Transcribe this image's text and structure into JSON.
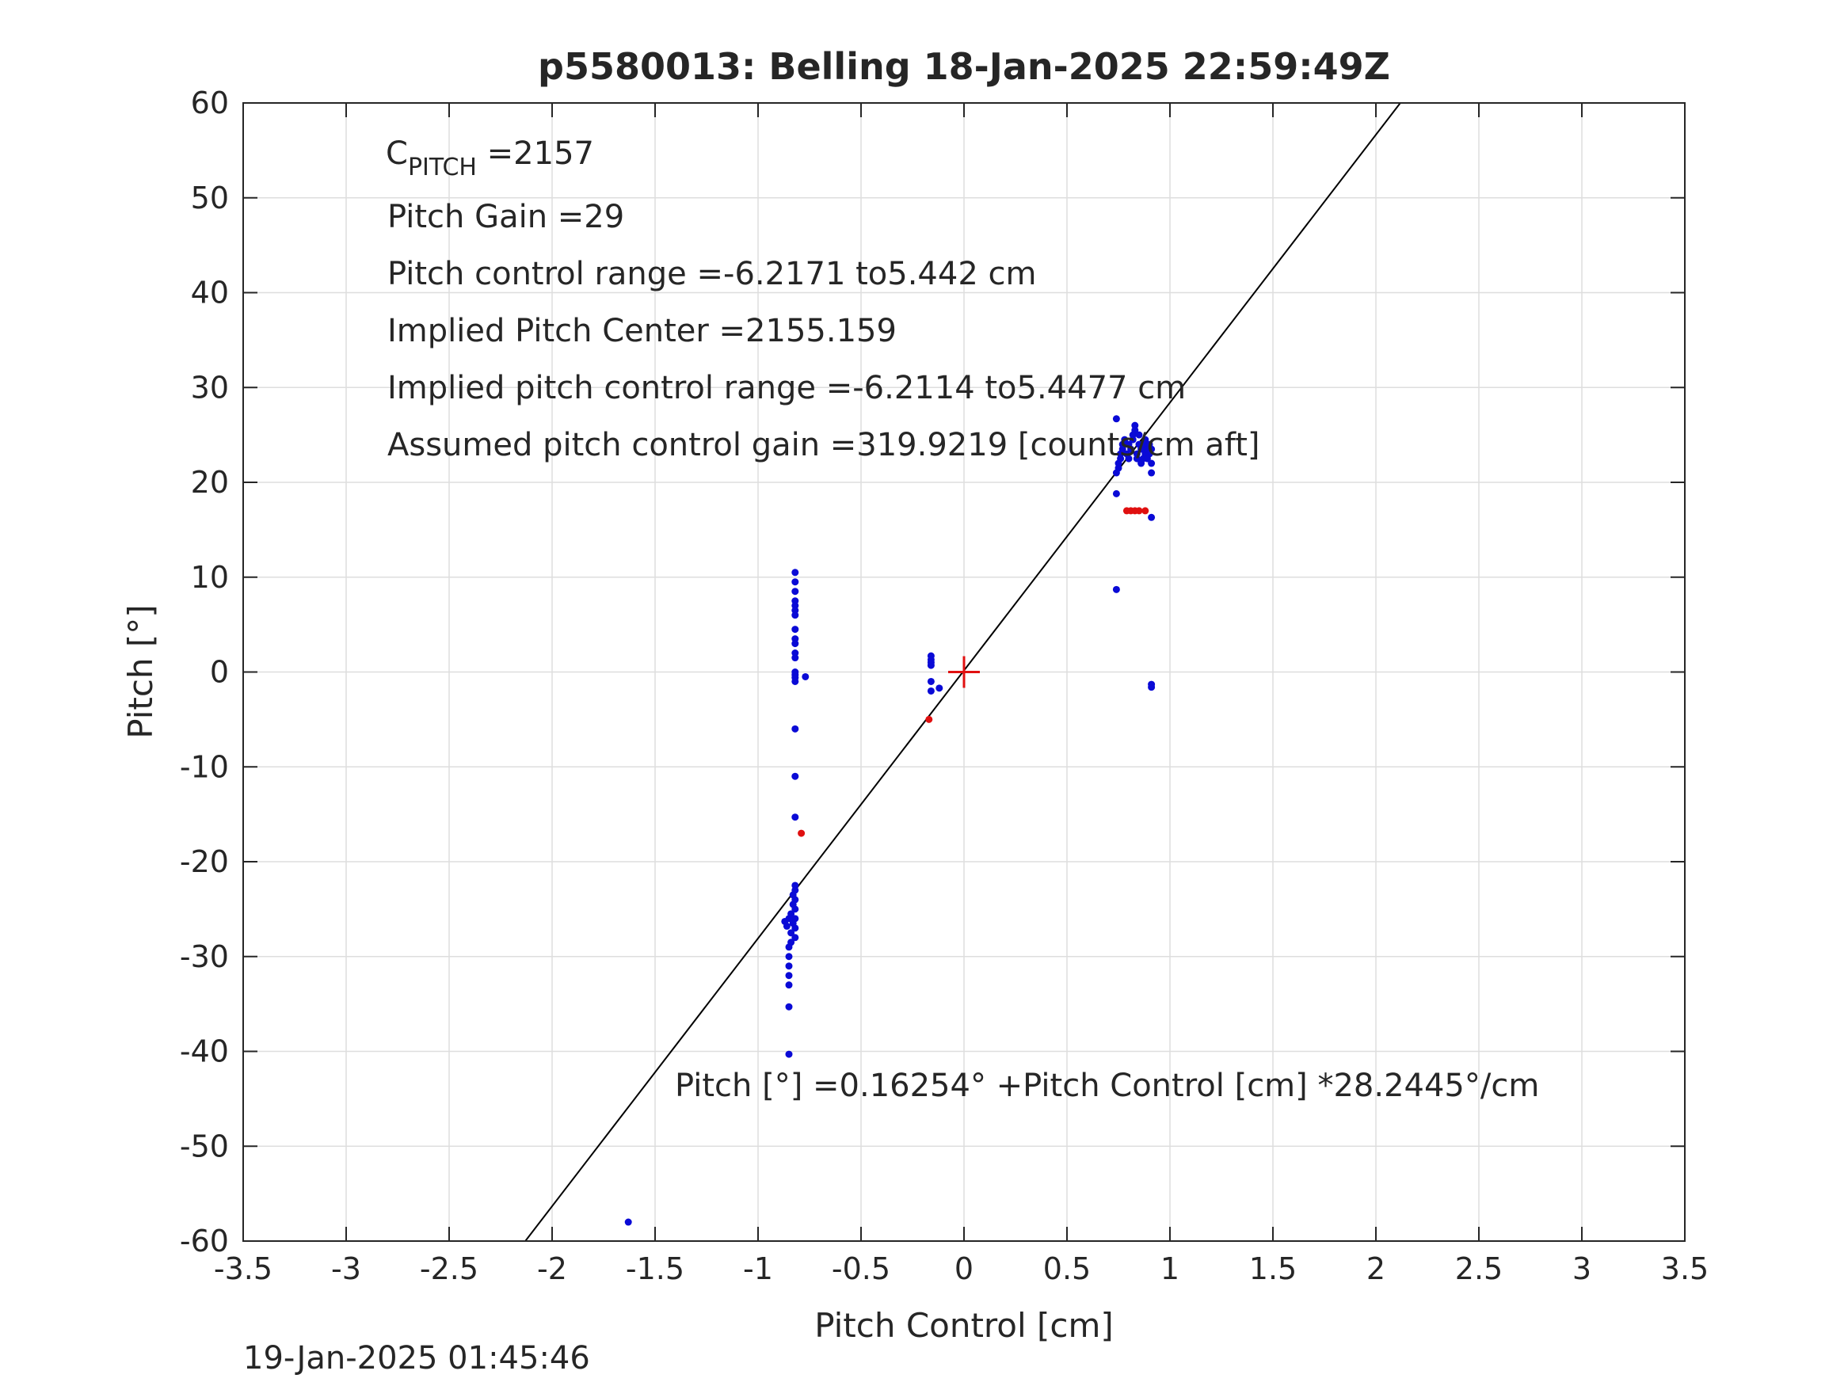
{
  "chart_data": {
    "type": "scatter",
    "title": "p5580013: Belling 18-Jan-2025 22:59:49Z",
    "xlabel": "Pitch Control [cm]",
    "ylabel": "Pitch [°]",
    "xlim": [
      -3.5,
      3.5
    ],
    "ylim": [
      -60,
      60
    ],
    "grid": true,
    "x_tick_labels": [
      "-3.5",
      "-3",
      "-2.5",
      "-2",
      "-1.5",
      "-1",
      "-0.5",
      "0",
      "0.5",
      "1",
      "1.5",
      "2",
      "2.5",
      "3",
      "3.5"
    ],
    "y_tick_labels": [
      "-60",
      "-50",
      "-40",
      "-30",
      "-20",
      "-10",
      "0",
      "10",
      "20",
      "30",
      "40",
      "50",
      "60"
    ],
    "annotations": {
      "c_pitch_main": "C",
      "c_pitch_sub": "PITCH",
      "c_pitch_value": " =2157",
      "pitch_gain": "Pitch Gain =29",
      "pitch_control_range": "Pitch control range =-6.2171 to5.442 cm",
      "implied_center": "Implied Pitch Center =2155.159",
      "implied_range": "Implied pitch control range =-6.2114 to5.4477 cm",
      "assumed_gain": "Assumed pitch control gain =319.9219 [counts/cm aft]",
      "fit_equation": "Pitch [°] =0.16254° +Pitch Control [cm] *28.2445°/cm"
    },
    "timestamp": "19-Jan-2025 01:45:46",
    "fit_line": {
      "intercept": 0.16254,
      "slope": 28.2445,
      "color": "#000000"
    },
    "center_marker": {
      "x": 0,
      "y": 0,
      "color": "#e01010"
    },
    "series": [
      {
        "color": "#0a0ad6",
        "points": [
          [
            -0.82,
            10.5
          ],
          [
            -0.82,
            9.5
          ],
          [
            -0.82,
            8.5
          ],
          [
            -0.82,
            7.5
          ],
          [
            -0.82,
            7
          ],
          [
            -0.82,
            6.5
          ],
          [
            -0.82,
            6
          ],
          [
            -0.82,
            4.5
          ],
          [
            -0.82,
            3.5
          ],
          [
            -0.82,
            3
          ],
          [
            -0.82,
            2
          ],
          [
            -0.82,
            1.5
          ],
          [
            -0.82,
            0
          ],
          [
            -0.82,
            -0.3
          ],
          [
            -0.82,
            -0.6
          ],
          [
            -0.82,
            -1
          ],
          [
            -0.77,
            -0.5
          ],
          [
            -0.82,
            -6
          ],
          [
            -0.82,
            -11
          ],
          [
            -0.82,
            -15.3
          ],
          [
            -0.82,
            -22.5
          ],
          [
            -0.82,
            -23
          ],
          [
            -0.83,
            -23.5
          ],
          [
            -0.82,
            -24
          ],
          [
            -0.83,
            -24.5
          ],
          [
            -0.82,
            -25
          ],
          [
            -0.84,
            -25.5
          ],
          [
            -0.82,
            -26
          ],
          [
            -0.83,
            -26.5
          ],
          [
            -0.82,
            -27
          ],
          [
            -0.84,
            -27.5
          ],
          [
            -0.82,
            -28
          ],
          [
            -0.85,
            -26
          ],
          [
            -0.87,
            -26.3
          ],
          [
            -0.86,
            -26.8
          ],
          [
            -0.84,
            -28.5
          ],
          [
            -0.85,
            -29
          ],
          [
            -0.85,
            -30
          ],
          [
            -0.85,
            -31
          ],
          [
            -0.85,
            -32
          ],
          [
            -0.85,
            -33
          ],
          [
            -0.85,
            -35.3
          ],
          [
            -0.85,
            -40.3
          ],
          [
            -1.63,
            -58
          ],
          [
            -0.16,
            1.7
          ],
          [
            -0.16,
            1.3
          ],
          [
            -0.16,
            1.0
          ],
          [
            -0.16,
            0.7
          ],
          [
            -0.16,
            -1.0
          ],
          [
            -0.16,
            -2.0
          ],
          [
            -0.12,
            -1.7
          ],
          [
            0.74,
            26.7
          ],
          [
            0.74,
            8.7
          ],
          [
            0.74,
            18.8
          ],
          [
            0.74,
            21
          ],
          [
            0.75,
            21.5
          ],
          [
            0.75,
            22
          ],
          [
            0.76,
            22.5
          ],
          [
            0.76,
            23
          ],
          [
            0.77,
            23.5
          ],
          [
            0.77,
            24
          ],
          [
            0.78,
            24.5
          ],
          [
            0.79,
            23
          ],
          [
            0.8,
            22.5
          ],
          [
            0.8,
            24
          ],
          [
            0.81,
            23.5
          ],
          [
            0.82,
            24.5
          ],
          [
            0.82,
            25
          ],
          [
            0.83,
            25.5
          ],
          [
            0.83,
            26
          ],
          [
            0.84,
            22.5
          ],
          [
            0.84,
            23
          ],
          [
            0.85,
            24
          ],
          [
            0.85,
            25
          ],
          [
            0.86,
            22
          ],
          [
            0.86,
            23.5
          ],
          [
            0.87,
            22.5
          ],
          [
            0.87,
            24
          ],
          [
            0.88,
            23
          ],
          [
            0.88,
            24.5
          ],
          [
            0.89,
            22.5
          ],
          [
            0.89,
            23.5
          ],
          [
            0.9,
            23
          ],
          [
            0.9,
            24
          ],
          [
            0.91,
            22
          ],
          [
            0.91,
            21
          ],
          [
            0.91,
            23.5
          ],
          [
            0.91,
            16.3
          ],
          [
            0.91,
            -1.3
          ],
          [
            0.91,
            -1.6
          ]
        ]
      },
      {
        "color": "#e01010",
        "points": [
          [
            -0.79,
            -17
          ],
          [
            -0.17,
            -5
          ],
          [
            0.79,
            17
          ],
          [
            0.81,
            17
          ],
          [
            0.83,
            17
          ],
          [
            0.85,
            17
          ],
          [
            0.88,
            17
          ]
        ]
      }
    ]
  }
}
